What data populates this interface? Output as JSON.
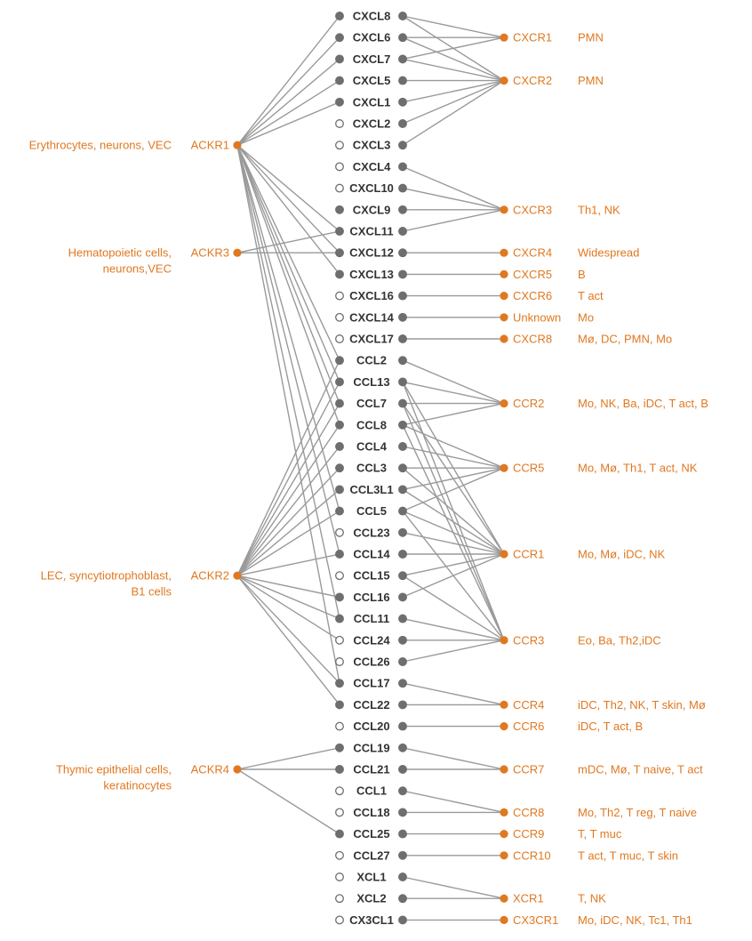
{
  "colors": {
    "orange": "#e07820",
    "filled_node": "#6e6e6e",
    "edge": "#9a9a9a",
    "text": "#333333"
  },
  "ackrs": [
    {
      "id": "ACKR1",
      "label": "ACKR1",
      "cells": [
        "Erythrocytes, neurons, VEC"
      ]
    },
    {
      "id": "ACKR3",
      "label": "ACKR3",
      "cells": [
        "Hematopoietic cells,",
        "neurons,VEC"
      ]
    },
    {
      "id": "ACKR2",
      "label": "ACKR2",
      "cells": [
        "LEC, syncytiotrophoblast,",
        "B1 cells"
      ]
    },
    {
      "id": "ACKR4",
      "label": "ACKR4",
      "cells": [
        "Thymic epithelial cells,",
        "keratinocytes"
      ]
    }
  ],
  "chemokines": [
    {
      "label": "CXCL8",
      "left_filled": true,
      "right_filled": true
    },
    {
      "label": "CXCL6",
      "left_filled": true,
      "right_filled": true
    },
    {
      "label": "CXCL7",
      "left_filled": true,
      "right_filled": true
    },
    {
      "label": "CXCL5",
      "left_filled": true,
      "right_filled": true
    },
    {
      "label": "CXCL1",
      "left_filled": true,
      "right_filled": true
    },
    {
      "label": "CXCL2",
      "left_filled": false,
      "right_filled": true
    },
    {
      "label": "CXCL3",
      "left_filled": false,
      "right_filled": true
    },
    {
      "label": "CXCL4",
      "left_filled": false,
      "right_filled": true
    },
    {
      "label": "CXCL10",
      "left_filled": false,
      "right_filled": true
    },
    {
      "label": "CXCL9",
      "left_filled": true,
      "right_filled": true
    },
    {
      "label": "CXCL11",
      "left_filled": true,
      "right_filled": true
    },
    {
      "label": "CXCL12",
      "left_filled": true,
      "right_filled": true
    },
    {
      "label": "CXCL13",
      "left_filled": true,
      "right_filled": true
    },
    {
      "label": "CXCL16",
      "left_filled": false,
      "right_filled": true
    },
    {
      "label": "CXCL14",
      "left_filled": false,
      "right_filled": true
    },
    {
      "label": "CXCL17",
      "left_filled": false,
      "right_filled": true
    },
    {
      "label": "CCL2",
      "left_filled": true,
      "right_filled": true
    },
    {
      "label": "CCL13",
      "left_filled": true,
      "right_filled": true
    },
    {
      "label": "CCL7",
      "left_filled": true,
      "right_filled": true
    },
    {
      "label": "CCL8",
      "left_filled": true,
      "right_filled": true
    },
    {
      "label": "CCL4",
      "left_filled": true,
      "right_filled": true
    },
    {
      "label": "CCL3",
      "left_filled": true,
      "right_filled": true
    },
    {
      "label": "CCL3L1",
      "left_filled": true,
      "right_filled": true
    },
    {
      "label": "CCL5",
      "left_filled": true,
      "right_filled": true
    },
    {
      "label": "CCL23",
      "left_filled": false,
      "right_filled": true
    },
    {
      "label": "CCL14",
      "left_filled": true,
      "right_filled": true
    },
    {
      "label": "CCL15",
      "left_filled": false,
      "right_filled": true
    },
    {
      "label": "CCL16",
      "left_filled": true,
      "right_filled": true
    },
    {
      "label": "CCL11",
      "left_filled": true,
      "right_filled": true
    },
    {
      "label": "CCL24",
      "left_filled": false,
      "right_filled": true
    },
    {
      "label": "CCL26",
      "left_filled": false,
      "right_filled": true
    },
    {
      "label": "CCL17",
      "left_filled": true,
      "right_filled": true
    },
    {
      "label": "CCL22",
      "left_filled": true,
      "right_filled": true
    },
    {
      "label": "CCL20",
      "left_filled": false,
      "right_filled": true
    },
    {
      "label": "CCL19",
      "left_filled": true,
      "right_filled": true
    },
    {
      "label": "CCL21",
      "left_filled": true,
      "right_filled": true
    },
    {
      "label": "CCL1",
      "left_filled": false,
      "right_filled": true
    },
    {
      "label": "CCL18",
      "left_filled": false,
      "right_filled": true
    },
    {
      "label": "CCL25",
      "left_filled": true,
      "right_filled": true
    },
    {
      "label": "CCL27",
      "left_filled": false,
      "right_filled": true
    },
    {
      "label": "XCL1",
      "left_filled": false,
      "right_filled": true
    },
    {
      "label": "XCL2",
      "left_filled": false,
      "right_filled": true
    },
    {
      "label": "CX3CL1",
      "left_filled": false,
      "right_filled": true
    }
  ],
  "receptors": [
    {
      "id": "CXCR1",
      "label": "CXCR1",
      "cells": "PMN"
    },
    {
      "id": "CXCR2",
      "label": "CXCR2",
      "cells": "PMN"
    },
    {
      "id": "CXCR3",
      "label": "CXCR3",
      "cells": "Th1, NK"
    },
    {
      "id": "CXCR4",
      "label": "CXCR4",
      "cells": "Widespread"
    },
    {
      "id": "CXCR5",
      "label": "CXCR5",
      "cells": "B"
    },
    {
      "id": "CXCR6",
      "label": "CXCR6",
      "cells": "T act"
    },
    {
      "id": "Unknown",
      "label": "Unknown",
      "cells": "Mo"
    },
    {
      "id": "CXCR8",
      "label": "CXCR8",
      "cells": "Mø, DC, PMN, Mo"
    },
    {
      "id": "CCR2",
      "label": "CCR2",
      "cells": "Mo, NK, Ba, iDC, T act, B"
    },
    {
      "id": "CCR5",
      "label": "CCR5",
      "cells": "Mo, Mø, Th1, T act, NK"
    },
    {
      "id": "CCR1",
      "label": "CCR1",
      "cells": "Mo, Mø, iDC, NK"
    },
    {
      "id": "CCR3",
      "label": "CCR3",
      "cells": "Eo, Ba, Th2,iDC"
    },
    {
      "id": "CCR4",
      "label": "CCR4",
      "cells": "iDC, Th2, NK, T skin, Mø"
    },
    {
      "id": "CCR6",
      "label": "CCR6",
      "cells": "iDC, T act, B"
    },
    {
      "id": "CCR7",
      "label": "CCR7",
      "cells": "mDC, Mø, T naive, T act"
    },
    {
      "id": "CCR8",
      "label": "CCR8",
      "cells": "Mo, Th2, T reg, T naive"
    },
    {
      "id": "CCR9",
      "label": "CCR9",
      "cells": "T, T muc"
    },
    {
      "id": "CCR10",
      "label": "CCR10",
      "cells": "T act, T muc, T skin"
    },
    {
      "id": "XCR1",
      "label": "XCR1",
      "cells": "T, NK"
    },
    {
      "id": "CX3CR1",
      "label": "CX3CR1",
      "cells": "Mo, iDC, NK, Tc1, Th1"
    }
  ],
  "ackr_links": {
    "ACKR1": [
      "CXCL8",
      "CXCL6",
      "CXCL7",
      "CXCL5",
      "CXCL1",
      "CXCL11",
      "CXCL12",
      "CXCL13",
      "CCL2",
      "CCL13",
      "CCL7",
      "CCL8",
      "CCL5",
      "CCL14",
      "CCL11",
      "CCL17"
    ],
    "ACKR3": [
      "CXCL11",
      "CXCL12"
    ],
    "ACKR2": [
      "CCL2",
      "CCL13",
      "CCL7",
      "CCL8",
      "CCL4",
      "CCL3",
      "CCL3L1",
      "CCL5",
      "CCL14",
      "CCL16",
      "CCL11",
      "CCL17",
      "CCL22",
      "CCL24"
    ],
    "ACKR4": [
      "CCL19",
      "CCL21",
      "CCL25"
    ]
  },
  "receptor_links": {
    "CXCR1": [
      "CXCL8",
      "CXCL6",
      "CXCL7"
    ],
    "CXCR2": [
      "CXCL8",
      "CXCL6",
      "CXCL7",
      "CXCL5",
      "CXCL1",
      "CXCL2",
      "CXCL3"
    ],
    "CXCR3": [
      "CXCL4",
      "CXCL10",
      "CXCL9",
      "CXCL11"
    ],
    "CXCR4": [
      "CXCL12"
    ],
    "CXCR5": [
      "CXCL13"
    ],
    "CXCR6": [
      "CXCL16"
    ],
    "Unknown": [
      "CXCL14"
    ],
    "CXCR8": [
      "CXCL17"
    ],
    "CCR2": [
      "CCL2",
      "CCL13",
      "CCL7",
      "CCL8"
    ],
    "CCR5": [
      "CCL8",
      "CCL4",
      "CCL3",
      "CCL3L1",
      "CCL5"
    ],
    "CCR1": [
      "CCL13",
      "CCL7",
      "CCL3",
      "CCL3L1",
      "CCL5",
      "CCL23",
      "CCL14",
      "CCL15",
      "CCL16"
    ],
    "CCR3": [
      "CCL13",
      "CCL7",
      "CCL8",
      "CCL5",
      "CCL15",
      "CCL11",
      "CCL24",
      "CCL26"
    ],
    "CCR4": [
      "CCL17",
      "CCL22"
    ],
    "CCR6": [
      "CCL20"
    ],
    "CCR7": [
      "CCL19",
      "CCL21"
    ],
    "CCR8": [
      "CCL1",
      "CCL18"
    ],
    "CCR9": [
      "CCL25"
    ],
    "CCR10": [
      "CCL27"
    ],
    "XCR1": [
      "XCL1",
      "XCL2"
    ],
    "CX3CR1": [
      "CX3CL1"
    ]
  }
}
